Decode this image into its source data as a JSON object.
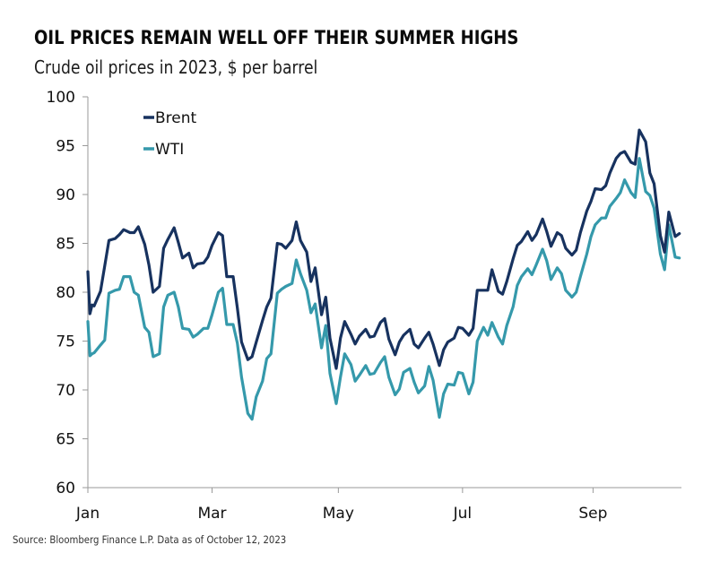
{
  "title": "OIL PRICES REMAIN WELL OFF THEIR SUMMER HIGHS",
  "subtitle": "Crude oil prices in 2023, $ per barrel",
  "source": "Source: Bloomberg Finance L.P. Data as of October 12, 2023",
  "chart_data": {
    "type": "line",
    "title": "OIL PRICES REMAIN WELL OFF THEIR SUMMER HIGHS",
    "subtitle": "Crude oil prices in 2023, $ per barrel",
    "xlabel": "",
    "ylabel": "$ per barrel",
    "ylim": [
      60,
      100
    ],
    "yticks": [
      60,
      65,
      70,
      75,
      80,
      85,
      90,
      95,
      100
    ],
    "xlim_day_of_year": [
      3,
      285
    ],
    "xticks": [
      {
        "label": "Jan",
        "day": 3
      },
      {
        "label": "Mar",
        "day": 62
      },
      {
        "label": "May",
        "day": 122
      },
      {
        "label": "Jul",
        "day": 181
      },
      {
        "label": "Sep",
        "day": 243
      }
    ],
    "grid": false,
    "legend": {
      "position": "top-left",
      "entries": [
        "Brent",
        "WTI"
      ]
    },
    "colors": {
      "Brent": "#17325f",
      "WTI": "#3599ab"
    },
    "x_day_of_year": [
      3,
      4,
      5,
      6,
      9,
      11,
      13,
      16,
      18,
      20,
      23,
      25,
      27,
      30,
      32,
      34,
      37,
      39,
      41,
      44,
      46,
      48,
      51,
      53,
      55,
      58,
      60,
      62,
      65,
      67,
      69,
      72,
      74,
      76,
      79,
      81,
      83,
      86,
      88,
      90,
      93,
      95,
      97,
      100,
      102,
      104,
      107,
      109,
      111,
      114,
      116,
      118,
      121,
      123,
      125,
      128,
      130,
      132,
      135,
      137,
      139,
      142,
      144,
      146,
      149,
      151,
      153,
      156,
      158,
      160,
      163,
      165,
      167,
      170,
      172,
      174,
      177,
      179,
      181,
      184,
      186,
      188,
      191,
      193,
      195,
      198,
      200,
      202,
      205,
      207,
      209,
      212,
      214,
      216,
      219,
      221,
      223,
      226,
      228,
      230,
      233,
      235,
      237,
      240,
      242,
      244,
      247,
      249,
      251,
      254,
      256,
      258,
      261,
      263,
      265,
      268,
      270,
      272,
      275,
      277,
      279,
      282,
      284
    ],
    "series": [
      {
        "name": "Brent",
        "values": [
          82.1,
          77.8,
          78.7,
          78.6,
          80.1,
          82.7,
          85.3,
          85.5,
          85.9,
          86.4,
          86.1,
          86.1,
          86.7,
          84.9,
          82.8,
          80.0,
          80.6,
          84.5,
          85.4,
          86.6,
          85.1,
          83.5,
          84.0,
          82.5,
          82.9,
          83.0,
          83.6,
          84.8,
          86.1,
          85.8,
          81.6,
          81.6,
          78.4,
          74.9,
          73.1,
          73.4,
          74.9,
          77.1,
          78.5,
          79.4,
          85.0,
          84.9,
          84.5,
          85.3,
          87.2,
          85.3,
          84.1,
          81.1,
          82.5,
          77.7,
          79.5,
          75.3,
          72.2,
          75.3,
          77.0,
          75.7,
          74.7,
          75.5,
          76.2,
          75.4,
          75.5,
          76.9,
          77.3,
          75.2,
          73.6,
          74.9,
          75.6,
          76.2,
          74.7,
          74.3,
          75.3,
          75.9,
          74.7,
          72.5,
          74.1,
          74.9,
          75.3,
          76.4,
          76.3,
          75.6,
          76.3,
          80.2,
          80.2,
          80.2,
          82.3,
          80.1,
          79.8,
          81.1,
          83.4,
          84.8,
          85.2,
          86.2,
          85.3,
          85.9,
          87.5,
          86.2,
          84.7,
          86.1,
          85.8,
          84.5,
          83.8,
          84.3,
          86.1,
          88.3,
          89.3,
          90.6,
          90.5,
          90.9,
          92.2,
          93.7,
          94.2,
          94.4,
          93.3,
          93.1,
          96.6,
          95.4,
          92.2,
          91.1,
          85.8,
          84.1,
          88.2,
          85.7,
          86.0,
          87.9
        ]
      },
      {
        "name": "WTI",
        "values": [
          77.0,
          73.5,
          73.7,
          73.8,
          74.6,
          75.1,
          79.9,
          80.2,
          80.3,
          81.6,
          81.6,
          80.0,
          79.7,
          76.4,
          75.9,
          73.4,
          73.7,
          78.5,
          79.7,
          80.0,
          78.5,
          76.3,
          76.2,
          75.4,
          75.7,
          76.3,
          76.3,
          77.7,
          80.0,
          80.4,
          76.7,
          76.7,
          74.8,
          71.3,
          67.6,
          67.0,
          69.3,
          70.9,
          73.2,
          73.7,
          79.9,
          80.3,
          80.6,
          80.9,
          83.3,
          81.9,
          80.2,
          77.9,
          78.8,
          74.3,
          76.6,
          71.7,
          68.6,
          71.3,
          73.7,
          72.6,
          70.9,
          71.5,
          72.5,
          71.6,
          71.7,
          72.8,
          73.4,
          71.3,
          69.5,
          70.1,
          71.8,
          72.2,
          70.8,
          69.7,
          70.4,
          72.4,
          71.0,
          67.2,
          69.6,
          70.6,
          70.5,
          71.8,
          71.7,
          69.6,
          70.8,
          75.0,
          76.4,
          75.6,
          76.9,
          75.4,
          74.7,
          76.6,
          78.5,
          80.7,
          81.6,
          82.4,
          81.8,
          82.8,
          84.4,
          83.2,
          81.3,
          82.5,
          81.9,
          80.2,
          79.5,
          80.0,
          81.6,
          83.9,
          85.7,
          86.9,
          87.6,
          87.6,
          88.8,
          89.6,
          90.2,
          91.5,
          90.2,
          89.7,
          93.7,
          90.3,
          89.9,
          88.6,
          83.9,
          82.3,
          86.9,
          83.6,
          83.5,
          84.8
        ]
      }
    ]
  }
}
